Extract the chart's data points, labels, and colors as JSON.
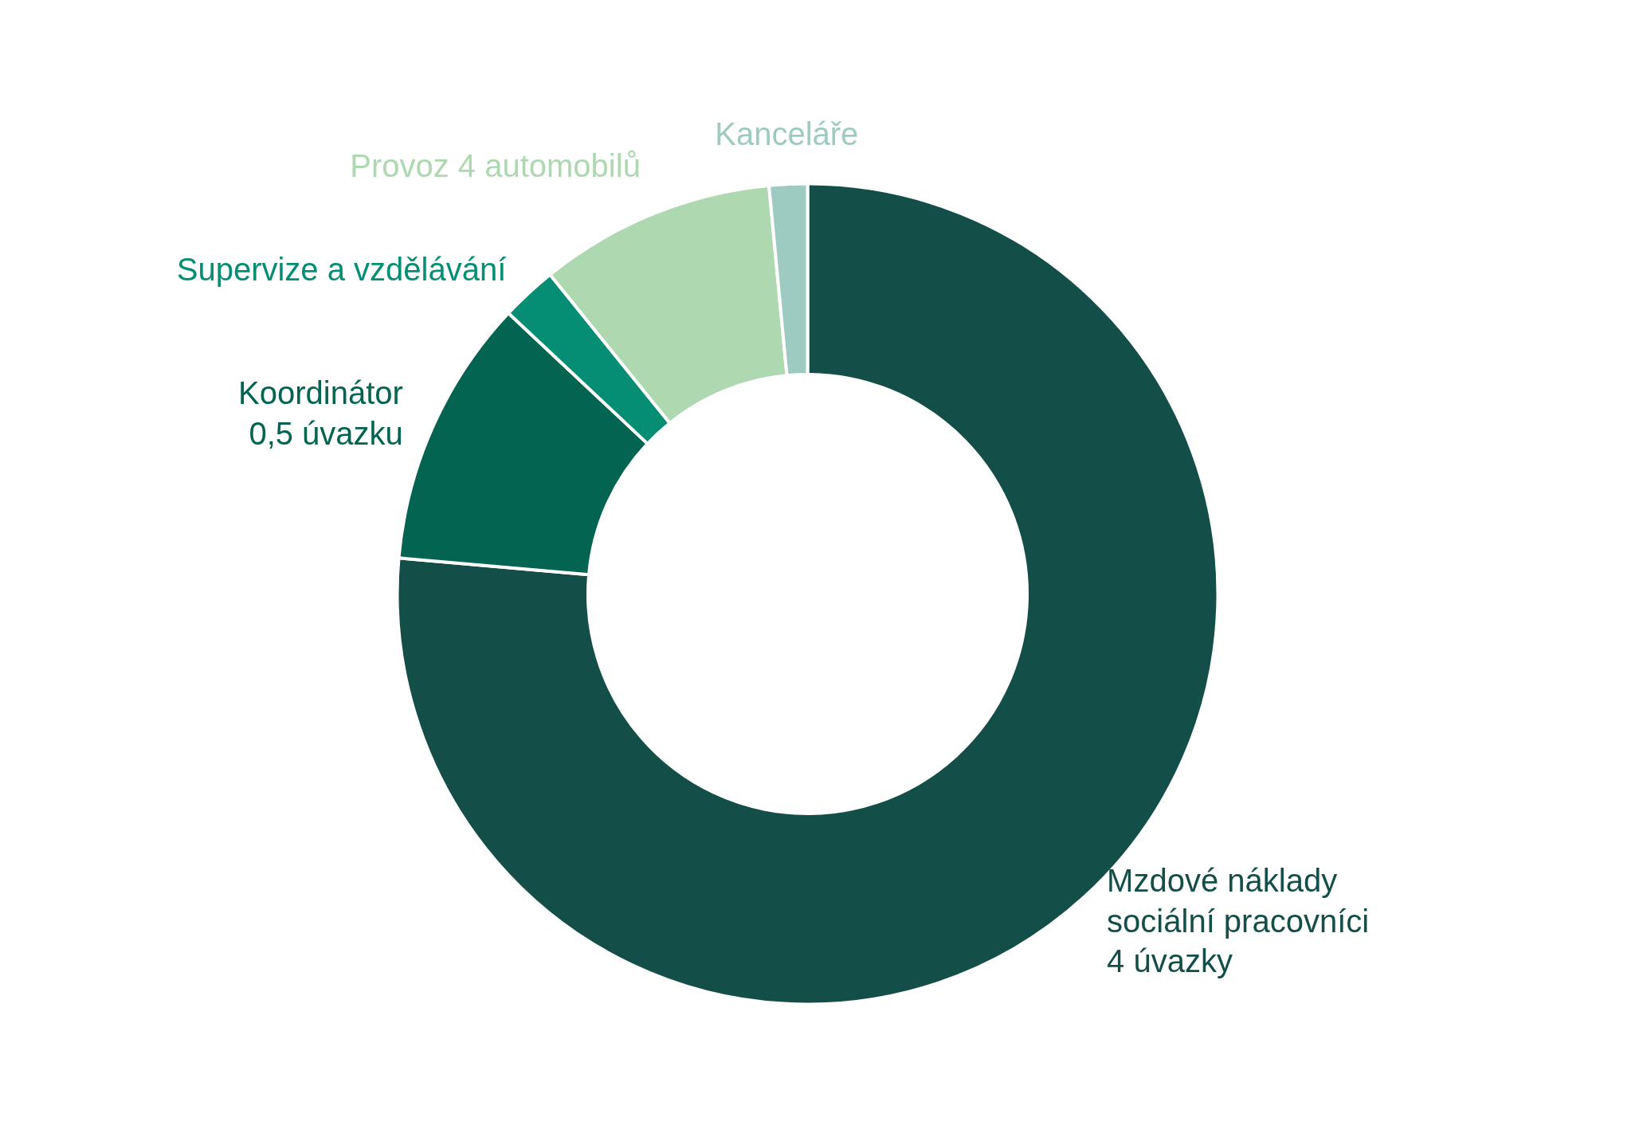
{
  "chart_data": {
    "type": "donut",
    "categories": [
      "Mzdové náklady\nsociální pracovníci\n4 úvazky",
      "Koordinátor\n0,5 úvazku",
      "Supervize a vzdělávání",
      "Provoz 4 automobilů",
      "Kanceláře"
    ],
    "values": [
      76.4,
      10.6,
      2.2,
      9.3,
      1.5
    ],
    "colors": [
      "#144e48",
      "#036452",
      "#058e73",
      "#aed9b0",
      "#9ecbc1"
    ]
  }
}
